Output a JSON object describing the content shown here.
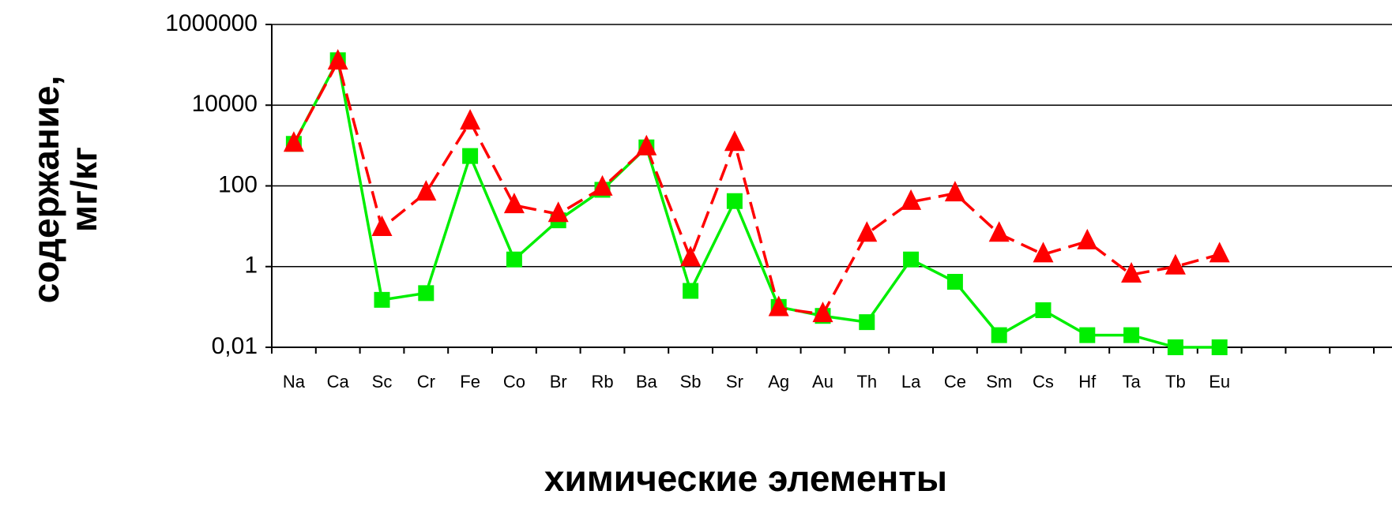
{
  "chart_data": {
    "type": "line",
    "log_y": true,
    "grid": true,
    "x_label": "химические элементы",
    "y_label": [
      "содержание,",
      "мг/кг"
    ],
    "categories": [
      "Na",
      "Ca",
      "Sc",
      "Cr",
      "Fe",
      "Co",
      "Br",
      "Rb",
      "Ba",
      "Sb",
      "Sr",
      "Ag",
      "Au",
      "Th",
      "La",
      "Ce",
      "Sm",
      "Cs",
      "Hf",
      "Ta",
      "Tb",
      "Eu"
    ],
    "ylim": [
      0.01,
      1000000
    ],
    "yticks": [
      {
        "value": 0.01,
        "label": "0,01"
      },
      1,
      100,
      10000,
      1000000
    ],
    "series": [
      {
        "color": "#00ee00",
        "marker": "square",
        "dash": false,
        "values": [
          1100,
          130000,
          0.15,
          0.22,
          550,
          1.5,
          14,
          80,
          900,
          0.25,
          42,
          0.1,
          0.06,
          0.042,
          1.5,
          0.42,
          0.02,
          0.083,
          0.02,
          0.02,
          0.01,
          0.01
        ]
      },
      {
        "color": "#ff0000",
        "marker": "triangle",
        "dash": true,
        "values": [
          1100,
          120000,
          9,
          68,
          3900,
          33,
          20,
          90,
          900,
          1.6,
          1150,
          0.093,
          0.066,
          6.5,
          40,
          65,
          6.5,
          2,
          4.2,
          0.63,
          1,
          2
        ]
      }
    ]
  }
}
